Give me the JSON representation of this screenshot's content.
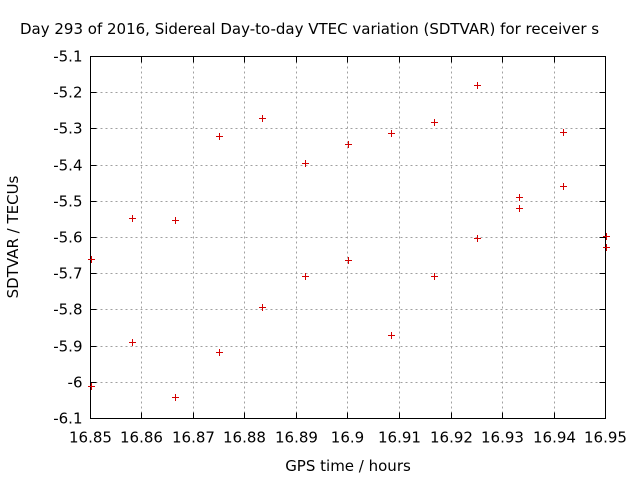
{
  "chart_data": {
    "type": "scatter",
    "title": "Day 293 of 2016, Sidereal Day-to-day VTEC variation (SDTVAR) for receiver s",
    "xlabel": "GPS time / hours",
    "ylabel": "SDTVAR / TECUs",
    "xlim": [
      16.85,
      16.95
    ],
    "ylim": [
      -6.1,
      -5.1
    ],
    "grid": true,
    "x_ticks": [
      16.85,
      16.86,
      16.87,
      16.88,
      16.89,
      16.9,
      16.91,
      16.92,
      16.93,
      16.94,
      16.95
    ],
    "x_tick_labels": [
      "16.85",
      "16.86",
      "16.87",
      "16.88",
      "16.89",
      "16.9",
      "16.91",
      "16.92",
      "16.93",
      "16.94",
      "16.95"
    ],
    "y_ticks": [
      -5.1,
      -5.2,
      -5.3,
      -5.4,
      -5.5,
      -5.6,
      -5.7,
      -5.8,
      -5.9,
      -6.0,
      -6.1
    ],
    "y_tick_labels": [
      "-5.1",
      "-5.2",
      "-5.3",
      "-5.4",
      "-5.5",
      "-5.6",
      "-5.7",
      "-5.8",
      "-5.9",
      "-6",
      "-6.1"
    ],
    "marker": "+",
    "color": "#d40000",
    "series": [
      {
        "name": "SDTVAR",
        "points": [
          {
            "x": 16.85,
            "y": -5.66
          },
          {
            "x": 16.85,
            "y": -6.01
          },
          {
            "x": 16.858,
            "y": -5.545
          },
          {
            "x": 16.858,
            "y": -5.888
          },
          {
            "x": 16.8665,
            "y": -5.552
          },
          {
            "x": 16.8665,
            "y": -6.04
          },
          {
            "x": 16.875,
            "y": -5.32
          },
          {
            "x": 16.875,
            "y": -5.915
          },
          {
            "x": 16.8833,
            "y": -5.27
          },
          {
            "x": 16.8833,
            "y": -5.792
          },
          {
            "x": 16.8917,
            "y": -5.395
          },
          {
            "x": 16.8917,
            "y": -5.705
          },
          {
            "x": 16.9,
            "y": -5.343
          },
          {
            "x": 16.9,
            "y": -5.663
          },
          {
            "x": 16.9083,
            "y": -5.31
          },
          {
            "x": 16.9083,
            "y": -5.868
          },
          {
            "x": 16.9167,
            "y": -5.28
          },
          {
            "x": 16.9167,
            "y": -5.705
          },
          {
            "x": 16.925,
            "y": -5.178
          },
          {
            "x": 16.925,
            "y": -5.6
          },
          {
            "x": 16.9333,
            "y": -5.487
          },
          {
            "x": 16.9333,
            "y": -5.518
          },
          {
            "x": 16.9417,
            "y": -5.308
          },
          {
            "x": 16.9417,
            "y": -5.457
          },
          {
            "x": 16.95,
            "y": -5.597
          },
          {
            "x": 16.95,
            "y": -5.626
          }
        ]
      }
    ]
  }
}
